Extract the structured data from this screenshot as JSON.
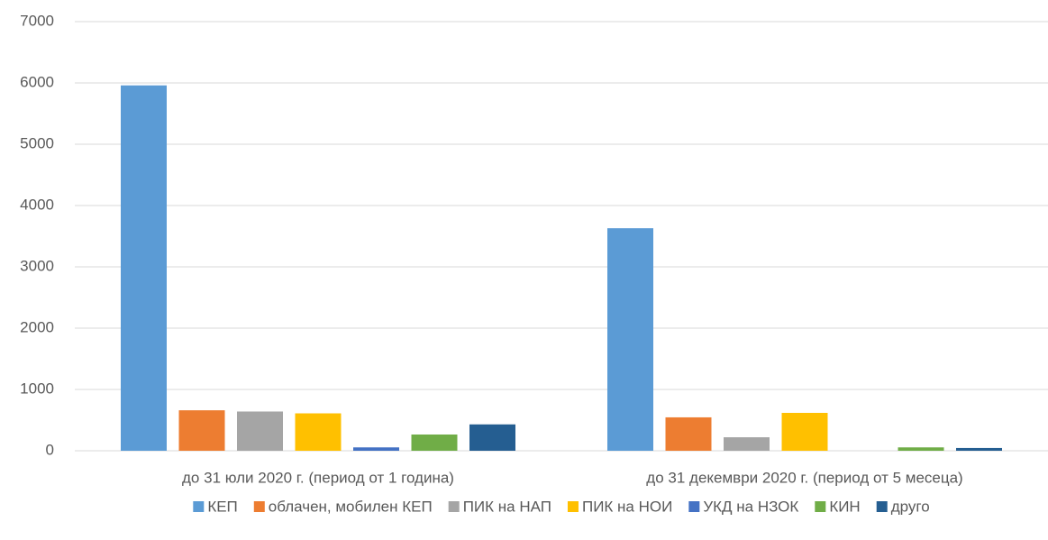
{
  "chart_data": {
    "type": "bar",
    "categories": [
      "до 31 юли 2020 г. (период от 1 година)",
      "до 31 декември 2020 г. (период от 5 месеца)"
    ],
    "series": [
      {
        "name": "КЕП",
        "color": "#5b9bd5",
        "values": [
          5960,
          3630
        ]
      },
      {
        "name": "облачен, мобилен КЕП",
        "color": "#ed7d31",
        "values": [
          660,
          545
        ]
      },
      {
        "name": "ПИК на НАП",
        "color": "#a5a5a5",
        "values": [
          640,
          220
        ]
      },
      {
        "name": "ПИК на НОИ",
        "color": "#ffc000",
        "values": [
          610,
          618
        ]
      },
      {
        "name": "УКД на НЗОК",
        "color": "#4472c4",
        "values": [
          55,
          0
        ]
      },
      {
        "name": "КИН",
        "color": "#70ad47",
        "values": [
          265,
          55
        ]
      },
      {
        "name": "друго",
        "color": "#255e91",
        "values": [
          430,
          45
        ]
      }
    ],
    "ylim": [
      0,
      7000
    ],
    "yticks": [
      0,
      1000,
      2000,
      3000,
      4000,
      5000,
      6000,
      7000
    ],
    "grid": true,
    "legend": "bottom"
  }
}
